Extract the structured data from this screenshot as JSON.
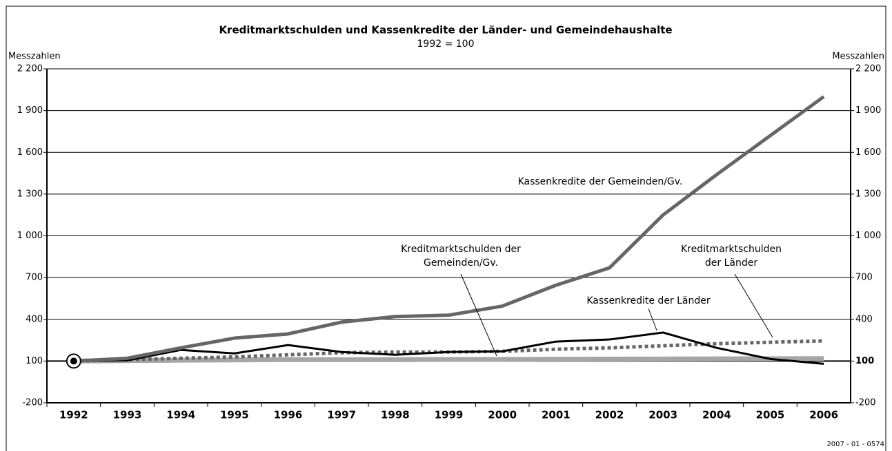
{
  "chart_data": {
    "type": "line",
    "title": "Kreditmarktschulden und Kassenkredite der Länder- und Gemeindehaushalte",
    "subtitle": "1992 = 100",
    "y_label": "Messzahlen",
    "y2_label": "Messzahlen",
    "footnote": "2007 - 01 - 0574",
    "categories": [
      "1992",
      "1993",
      "1994",
      "1995",
      "1996",
      "1997",
      "1998",
      "1999",
      "2000",
      "2001",
      "2002",
      "2003",
      "2004",
      "2005",
      "2006"
    ],
    "ylim": [
      -200,
      2200
    ],
    "yticks": [
      -200,
      100,
      400,
      700,
      {
        "value": 1000,
        "label": "1 000"
      },
      {
        "value": 1300,
        "label": "1 300"
      },
      {
        "value": 1600,
        "label": "1 600"
      },
      {
        "value": 1900,
        "label": "1 900"
      },
      {
        "value": 2200,
        "label": "2 200"
      }
    ],
    "y2lim": [
      -200,
      2200
    ],
    "grid": true,
    "series": [
      {
        "label": [
          "Kreditmarktschulden der",
          "Gemeinden/Gv."
        ],
        "color": "#a6a6a6",
        "width": 7,
        "dash": "none",
        "values": [
          100,
          103,
          106,
          108,
          110,
          110,
          110,
          112,
          112,
          113,
          114,
          115,
          116,
          117,
          118
        ]
      },
      {
        "label": [
          "Kreditmarktschulden",
          "der Länder"
        ],
        "color": "#666666",
        "width": 5,
        "dash": "dotted",
        "values": [
          100,
          110,
          120,
          130,
          145,
          160,
          165,
          165,
          170,
          185,
          195,
          210,
          225,
          235,
          245
        ]
      },
      {
        "label": [
          "Kassenkredite der Länder"
        ],
        "color": "#000000",
        "width": 3,
        "dash": "none",
        "values": [
          100,
          105,
          180,
          155,
          215,
          165,
          145,
          165,
          170,
          240,
          255,
          305,
          195,
          115,
          80
        ]
      },
      {
        "label": [
          "Kassenkredite der Gemeinden/Gv."
        ],
        "color": "#666666",
        "width": 5,
        "dash": "none",
        "values": [
          100,
          120,
          195,
          265,
          295,
          380,
          420,
          430,
          495,
          645,
          770,
          1150,
          1440,
          1720,
          2000
        ]
      }
    ]
  }
}
